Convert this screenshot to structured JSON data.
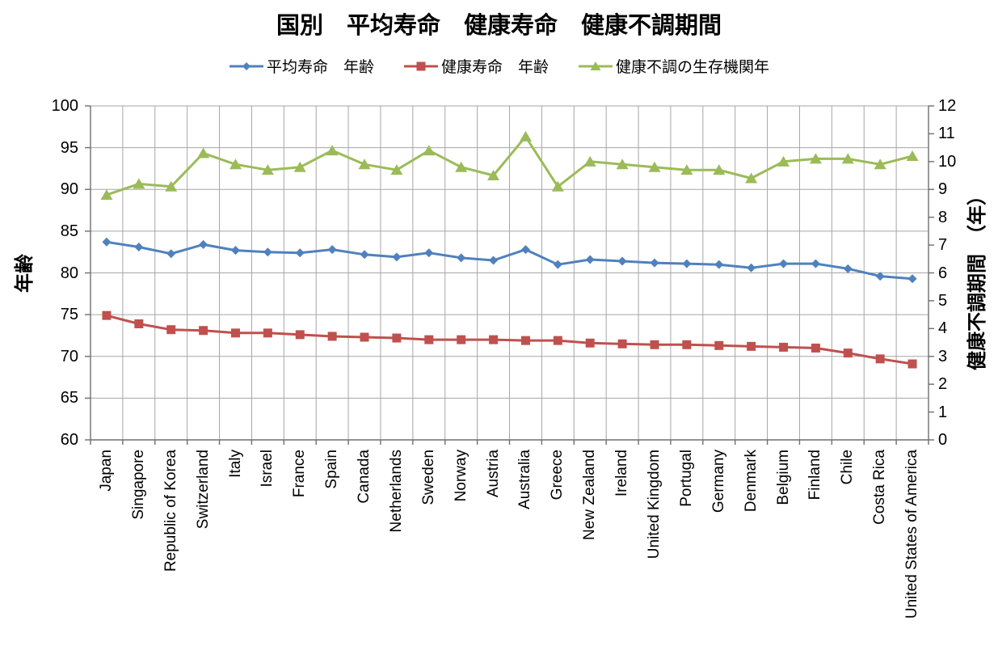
{
  "chart_data": {
    "type": "line",
    "title": "国別　平均寿命　健康寿命　健康不調期間",
    "categories": [
      "Japan",
      "Singapore",
      "Republic of Korea",
      "Switzerland",
      "Italy",
      "Israel",
      "France",
      "Spain",
      "Canada",
      "Netherlands",
      "Sweden",
      "Norway",
      "Austria",
      "Australia",
      "Greece",
      "New Zealand",
      "Ireland",
      "United Kingdom",
      "Portugal",
      "Germany",
      "Denmark",
      "Belgium",
      "Finland",
      "Chile",
      "Costa Rica",
      "United States of America"
    ],
    "series": [
      {
        "id": "life-expectancy",
        "name": "平均寿命　年齢",
        "axis": "left",
        "marker": "diamond",
        "color": "#4F81BD",
        "values": [
          83.7,
          83.1,
          82.3,
          83.4,
          82.7,
          82.5,
          82.4,
          82.8,
          82.2,
          81.9,
          82.4,
          81.8,
          81.5,
          82.8,
          81.0,
          81.6,
          81.4,
          81.2,
          81.1,
          81.0,
          80.6,
          81.1,
          81.1,
          80.5,
          79.6,
          79.3
        ]
      },
      {
        "id": "healthy-life-expectancy",
        "name": "健康寿命　年齢",
        "axis": "left",
        "marker": "square",
        "color": "#C0504D",
        "values": [
          74.9,
          73.9,
          73.2,
          73.1,
          72.8,
          72.8,
          72.6,
          72.4,
          72.3,
          72.2,
          72.0,
          72.0,
          72.0,
          71.9,
          71.9,
          71.6,
          71.5,
          71.4,
          71.4,
          71.3,
          71.2,
          71.1,
          71.0,
          70.4,
          69.7,
          69.1
        ]
      },
      {
        "id": "unhealthy-period",
        "name": "健康不調の生存機関年",
        "axis": "right",
        "marker": "triangle",
        "color": "#9BBB59",
        "values": [
          8.8,
          9.2,
          9.1,
          10.3,
          9.9,
          9.7,
          9.8,
          10.4,
          9.9,
          9.7,
          10.4,
          9.8,
          9.5,
          10.9,
          9.1,
          10.0,
          9.9,
          9.8,
          9.7,
          9.7,
          9.4,
          10.0,
          10.1,
          10.1,
          9.9,
          10.2
        ]
      }
    ],
    "left_axis": {
      "label": "年齢",
      "range": [
        60,
        100
      ],
      "tick_step": 5,
      "ticks": [
        60,
        65,
        70,
        75,
        80,
        85,
        90,
        95,
        100
      ]
    },
    "right_axis": {
      "label": "健康不調期間　（年）",
      "range": [
        0,
        12
      ],
      "tick_step": 1,
      "ticks": [
        0,
        1,
        2,
        3,
        4,
        5,
        6,
        7,
        8,
        9,
        10,
        11,
        12
      ]
    },
    "grid": true,
    "legend_position": "top",
    "colors": {
      "gridline": "#A6A6A6",
      "axis_line": "#6E6E6E",
      "background": "#FFFFFF",
      "text": "#000000"
    }
  }
}
